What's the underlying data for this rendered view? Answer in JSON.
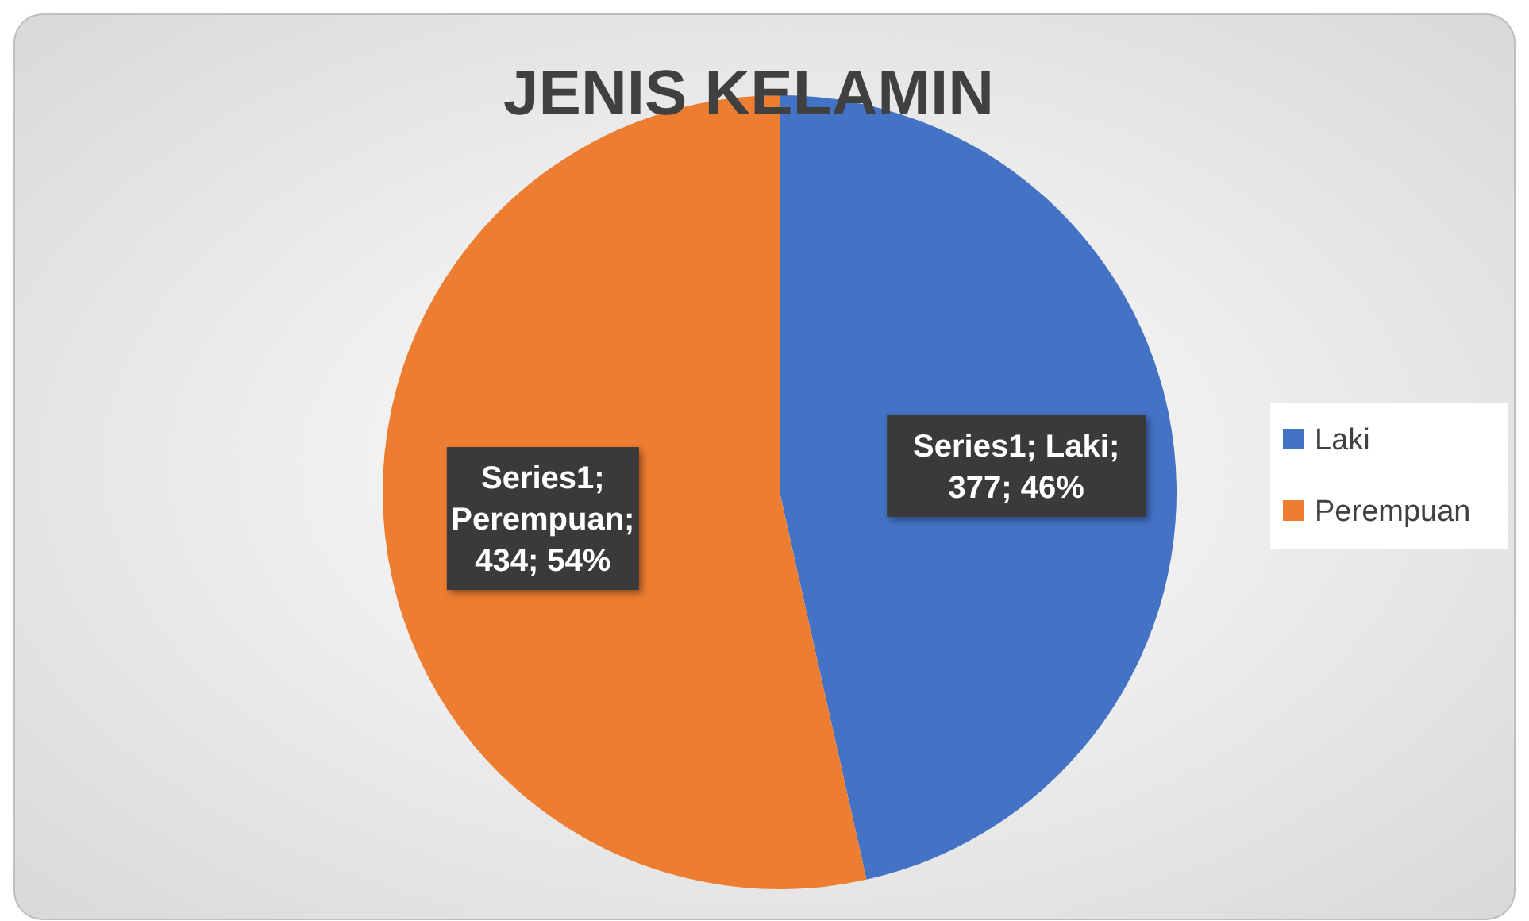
{
  "chart_data": {
    "type": "pie",
    "title": "JENIS KELAMIN",
    "categories": [
      "Laki",
      "Perempuan"
    ],
    "values": [
      377,
      434
    ],
    "colors": [
      "#4472c4",
      "#ed7d31"
    ],
    "value_labels": [
      "Series1; Laki; 377; 46%",
      "Series1; Perempuan; 434; 54%"
    ],
    "legend": "right"
  }
}
